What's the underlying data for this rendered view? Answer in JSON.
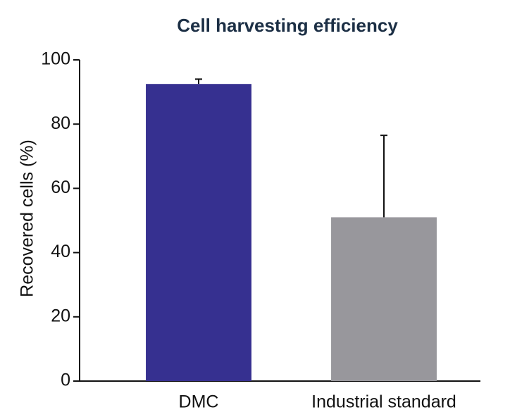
{
  "chart_data": {
    "type": "bar",
    "title": "Cell harvesting efficiency",
    "ylabel": "Recovered cells (%)",
    "categories": [
      "DMC",
      "Industrial standard"
    ],
    "values": [
      92.5,
      51
    ],
    "errors": [
      1.5,
      25.5
    ],
    "colors": [
      "#363090",
      "#98979c"
    ],
    "ylim": [
      0,
      100
    ],
    "yticks": [
      0,
      20,
      40,
      60,
      80,
      100
    ],
    "grid": false
  }
}
